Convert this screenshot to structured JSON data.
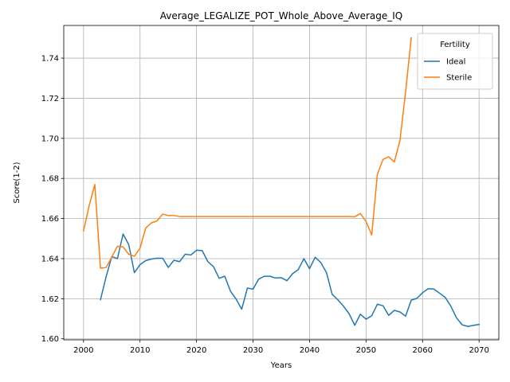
{
  "chart_data": {
    "type": "line",
    "title": "Average_LEGALIZE_POT_Whole_Above_Average_IQ",
    "xlabel": "Years",
    "ylabel": "Score(1-2)",
    "xlim": [
      1996.5,
      2073.5
    ],
    "ylim": [
      1.5995,
      1.7563
    ],
    "xticks": [
      2000,
      2010,
      2020,
      2030,
      2040,
      2050,
      2060,
      2070
    ],
    "yticks": [
      1.6,
      1.62,
      1.64,
      1.66,
      1.68,
      1.7,
      1.72,
      1.74
    ],
    "xtick_labels": [
      "2000",
      "2010",
      "2020",
      "2030",
      "2040",
      "2050",
      "2060",
      "2070"
    ],
    "ytick_labels": [
      "1.60",
      "1.62",
      "1.64",
      "1.66",
      "1.68",
      "1.70",
      "1.72",
      "1.74"
    ],
    "grid": true,
    "legend": {
      "title": "Fertility",
      "position": "top-right"
    },
    "series": [
      {
        "name": "Ideal",
        "color": "#1f77b4",
        "x": [
          2003,
          2004,
          2005,
          2006,
          2007,
          2008,
          2009,
          2010,
          2011,
          2012,
          2013,
          2014,
          2015,
          2016,
          2017,
          2018,
          2019,
          2020,
          2021,
          2022,
          2023,
          2024,
          2025,
          2026,
          2027,
          2028,
          2029,
          2030,
          2031,
          2032,
          2033,
          2034,
          2035,
          2036,
          2037,
          2038,
          2039,
          2040,
          2041,
          2042,
          2043,
          2044,
          2045,
          2046,
          2047,
          2048,
          2049,
          2050,
          2051,
          2052,
          2053,
          2054,
          2055,
          2056,
          2057,
          2058,
          2059,
          2060,
          2061,
          2062,
          2063,
          2064,
          2065,
          2066,
          2067,
          2068,
          2069,
          2070
        ],
        "y": [
          1.6195,
          1.631,
          1.641,
          1.64,
          1.6523,
          1.647,
          1.633,
          1.637,
          1.639,
          1.6398,
          1.6402,
          1.6402,
          1.6356,
          1.6392,
          1.6385,
          1.6422,
          1.6418,
          1.6442,
          1.644,
          1.6385,
          1.636,
          1.6302,
          1.6312,
          1.6238,
          1.6198,
          1.6148,
          1.6253,
          1.6248,
          1.6298,
          1.6312,
          1.6312,
          1.6303,
          1.6305,
          1.629,
          1.6325,
          1.6345,
          1.64,
          1.635,
          1.6407,
          1.638,
          1.633,
          1.6222,
          1.6195,
          1.6163,
          1.6125,
          1.6068,
          1.6123,
          1.6098,
          1.6115,
          1.6173,
          1.6165,
          1.6117,
          1.6142,
          1.6134,
          1.6113,
          1.6193,
          1.6202,
          1.623,
          1.625,
          1.6248,
          1.6228,
          1.6207,
          1.6163,
          1.6105,
          1.607,
          1.6062,
          1.6067,
          1.6072
        ]
      },
      {
        "name": "Sterile",
        "color": "#ff7f0e",
        "x": [
          2000,
          2001,
          2002,
          2003,
          2004,
          2005,
          2006,
          2007,
          2008,
          2009,
          2010,
          2011,
          2012,
          2013,
          2014,
          2015,
          2016,
          2017,
          2018,
          2019,
          2020,
          2021,
          2022,
          2023,
          2024,
          2025,
          2026,
          2027,
          2028,
          2029,
          2030,
          2031,
          2032,
          2033,
          2034,
          2035,
          2036,
          2037,
          2038,
          2039,
          2040,
          2041,
          2042,
          2043,
          2044,
          2045,
          2046,
          2047,
          2048,
          2049,
          2050,
          2051,
          2052,
          2053,
          2054,
          2055,
          2056,
          2057,
          2058
        ],
        "y": [
          1.6538,
          1.6665,
          1.677,
          1.6352,
          1.6356,
          1.6408,
          1.6462,
          1.6458,
          1.6422,
          1.6412,
          1.6452,
          1.6552,
          1.6578,
          1.6588,
          1.6622,
          1.6615,
          1.6615,
          1.661,
          1.661,
          1.661,
          1.661,
          1.661,
          1.661,
          1.661,
          1.661,
          1.661,
          1.661,
          1.661,
          1.661,
          1.661,
          1.661,
          1.661,
          1.661,
          1.661,
          1.661,
          1.661,
          1.661,
          1.661,
          1.661,
          1.661,
          1.661,
          1.661,
          1.661,
          1.661,
          1.661,
          1.661,
          1.661,
          1.661,
          1.6609,
          1.6625,
          1.6585,
          1.6518,
          1.682,
          1.6895,
          1.6908,
          1.6882,
          1.699,
          1.7232,
          1.7502
        ]
      }
    ]
  }
}
